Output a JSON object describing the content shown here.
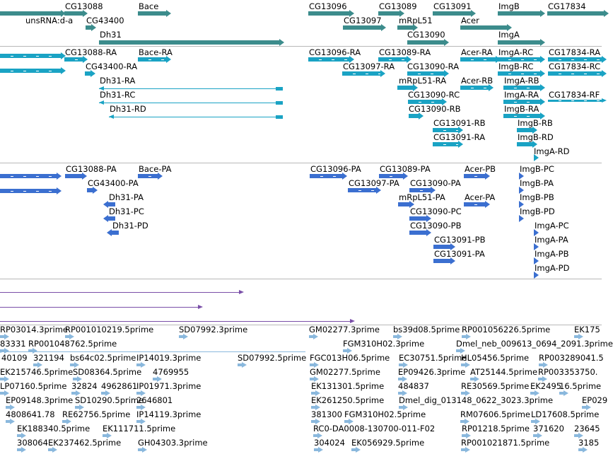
{
  "colors": {
    "gene": "#3c8c8c",
    "transcript": "#1aa3c4",
    "protein": "#3b6fd0",
    "alignment": "#7a4fa8",
    "est": "#8ab8dd",
    "divider": "#b8b8b8"
  },
  "tracks": [
    {
      "id": "genes",
      "style": "gene",
      "features": [
        {
          "label": "CG13088",
          "kind": "bar"
        },
        {
          "label": "Bace",
          "kind": "bar"
        },
        {
          "label": "unsRNA:d-a",
          "kind": "bar"
        },
        {
          "label": "CG43400",
          "kind": "bar"
        },
        {
          "label": "Dh31",
          "kind": "bar"
        },
        {
          "label": "CG13096",
          "kind": "bar"
        },
        {
          "label": "CG13097",
          "kind": "bar"
        },
        {
          "label": "CG13089",
          "kind": "bar"
        },
        {
          "label": "mRpL51",
          "kind": "bar"
        },
        {
          "label": "CG13090",
          "kind": "bar"
        },
        {
          "label": "CG13091",
          "kind": "bar"
        },
        {
          "label": "Acer",
          "kind": "bar"
        },
        {
          "label": "ImgB",
          "kind": "bar"
        },
        {
          "label": "ImgA",
          "kind": "bar"
        },
        {
          "label": "CG17834",
          "kind": "bar"
        }
      ]
    },
    {
      "id": "transcripts",
      "style": "transcript",
      "features": [
        {
          "label": "",
          "kind": "exons"
        },
        {
          "label": "",
          "kind": "exons"
        },
        {
          "label": "CG13088-RA",
          "kind": "exons"
        },
        {
          "label": "Bace-RA",
          "kind": "exons"
        },
        {
          "label": "CG43400-RA",
          "kind": "exons"
        },
        {
          "label": "Dh31-RA",
          "kind": "line"
        },
        {
          "label": "Dh31-RC",
          "kind": "line"
        },
        {
          "label": "Dh31-RD",
          "kind": "line"
        },
        {
          "label": "CG13096-RA",
          "kind": "exons"
        },
        {
          "label": "CG13097-RA",
          "kind": "exons"
        },
        {
          "label": "CG13089-RA",
          "kind": "exons"
        },
        {
          "label": "CG13090-RA",
          "kind": "exons"
        },
        {
          "label": "mRpL51-RA",
          "kind": "exons"
        },
        {
          "label": "CG13090-RC",
          "kind": "exons"
        },
        {
          "label": "CG13090-RB",
          "kind": "exons"
        },
        {
          "label": "CG13091-RB",
          "kind": "exons"
        },
        {
          "label": "CG13091-RA",
          "kind": "exons"
        },
        {
          "label": "Acer-RA",
          "kind": "exons"
        },
        {
          "label": "Acer-RB",
          "kind": "exons"
        },
        {
          "label": "ImgA-RC",
          "kind": "exons"
        },
        {
          "label": "ImgB-RC",
          "kind": "exons"
        },
        {
          "label": "ImgA-RB",
          "kind": "exons"
        },
        {
          "label": "ImgA-RA",
          "kind": "exons"
        },
        {
          "label": "ImgB-RA",
          "kind": "exons"
        },
        {
          "label": "ImgB-RB",
          "kind": "exons"
        },
        {
          "label": "ImgB-RD",
          "kind": "exons"
        },
        {
          "label": "ImgA-RD",
          "kind": "exons"
        },
        {
          "label": "CG17834-RA",
          "kind": "exons"
        },
        {
          "label": "CG17834-RC",
          "kind": "exons"
        },
        {
          "label": "CG17834-RF",
          "kind": "exons"
        }
      ]
    },
    {
      "id": "proteins",
      "style": "protein",
      "features": [
        {
          "label": "",
          "kind": "exons"
        },
        {
          "label": "",
          "kind": "exons"
        },
        {
          "label": "CG13088-PA",
          "kind": "exons"
        },
        {
          "label": "Bace-PA",
          "kind": "exons"
        },
        {
          "label": "CG43400-PA",
          "kind": "exons"
        },
        {
          "label": "Dh31-PA",
          "kind": "exons"
        },
        {
          "label": "Dh31-PC",
          "kind": "exons"
        },
        {
          "label": "Dh31-PD",
          "kind": "exons"
        },
        {
          "label": "CG13096-PA",
          "kind": "exons"
        },
        {
          "label": "CG13097-PA",
          "kind": "exons"
        },
        {
          "label": "CG13089-PA",
          "kind": "exons"
        },
        {
          "label": "CG13090-PA",
          "kind": "exons"
        },
        {
          "label": "mRpL51-PA",
          "kind": "exons"
        },
        {
          "label": "CG13090-PC",
          "kind": "exons"
        },
        {
          "label": "CG13090-PB",
          "kind": "exons"
        },
        {
          "label": "CG13091-PB",
          "kind": "exons"
        },
        {
          "label": "CG13091-PA",
          "kind": "exons"
        },
        {
          "label": "Acer-PB",
          "kind": "exons"
        },
        {
          "label": "Acer-PA",
          "kind": "exons"
        },
        {
          "label": "ImgB-PC",
          "kind": "exons"
        },
        {
          "label": "ImgB-PA",
          "kind": "exons"
        },
        {
          "label": "ImgB-PB",
          "kind": "exons"
        },
        {
          "label": "ImgB-PD",
          "kind": "exons"
        },
        {
          "label": "ImgA-PC",
          "kind": "exons"
        },
        {
          "label": "ImgA-PA",
          "kind": "exons"
        },
        {
          "label": "ImgA-PB",
          "kind": "exons"
        },
        {
          "label": "ImgA-PD",
          "kind": "exons"
        }
      ]
    },
    {
      "id": "alignments",
      "style": "alignment",
      "features": [
        {
          "label": "",
          "kind": "line"
        },
        {
          "label": "",
          "kind": "line"
        },
        {
          "label": "",
          "kind": "line"
        }
      ]
    },
    {
      "id": "ests",
      "style": "est",
      "features": [
        {
          "label": "RP03014.3prime"
        },
        {
          "label": "RP001010219.5prime"
        },
        {
          "label": "SD07992.3prime"
        },
        {
          "label": "GM02277.3prime"
        },
        {
          "label": "bs39d08.5prime"
        },
        {
          "label": "RP001056226.5prime"
        },
        {
          "label": "EK175"
        },
        {
          "label": "83331"
        },
        {
          "label": "RP001048762.5prime"
        },
        {
          "label": "FGM310H02.3prime"
        },
        {
          "label": "Dmel_neb_009613_0694_2091.3prime"
        },
        {
          "label": "40109"
        },
        {
          "label": "321194"
        },
        {
          "label": "bs64c02.5prime"
        },
        {
          "label": "IP14019.3prime"
        },
        {
          "label": "SD07992.5prime"
        },
        {
          "label": "FGC013H06.5prime"
        },
        {
          "label": "EC30751.5prime"
        },
        {
          "label": "HL05456.5prime"
        },
        {
          "label": "RP003289041.5"
        },
        {
          "label": "EK215746.5prime"
        },
        {
          "label": "SD08364.5prime"
        },
        {
          "label": "4769955"
        },
        {
          "label": "GM02277.5prime"
        },
        {
          "label": "EP09426.3prime"
        },
        {
          "label": "AT25144.5prime"
        },
        {
          "label": "RP003353750."
        },
        {
          "label": "LP07160.5prime"
        },
        {
          "label": "32824"
        },
        {
          "label": "4962861"
        },
        {
          "label": "IP01971.3prime"
        },
        {
          "label": "EK131301.5prime"
        },
        {
          "label": "484837"
        },
        {
          "label": "RE30569.5prime"
        },
        {
          "label": "EK2495"
        },
        {
          "label": "16.5prime"
        },
        {
          "label": "EP09148.3prime"
        },
        {
          "label": "SD10290.5prime"
        },
        {
          "label": "2646801"
        },
        {
          "label": "EK261250.5prime"
        },
        {
          "label": "Dmel_dig_013148_0622_3023.3prime"
        },
        {
          "label": "EP029"
        },
        {
          "label": "4808641.78"
        },
        {
          "label": "RE62756.5prime"
        },
        {
          "label": "IP14119.3prime"
        },
        {
          "label": "381300"
        },
        {
          "label": "FGM310H02.5prime"
        },
        {
          "label": "RM07606.5prime"
        },
        {
          "label": "LD17608.5prime"
        },
        {
          "label": "EK188340.5prime"
        },
        {
          "label": "EK111711.5prime"
        },
        {
          "label": "RC0-DA0008-130700-011-F02"
        },
        {
          "label": "RP01218.5prime"
        },
        {
          "label": "371620"
        },
        {
          "label": "23645"
        },
        {
          "label": "308064"
        },
        {
          "label": "EK237462.5prime"
        },
        {
          "label": "GH04303.3prime"
        },
        {
          "label": "304024"
        },
        {
          "label": "EK056929.5prime"
        },
        {
          "label": "RP001021871.5prime"
        },
        {
          "label": "3185"
        }
      ]
    }
  ]
}
